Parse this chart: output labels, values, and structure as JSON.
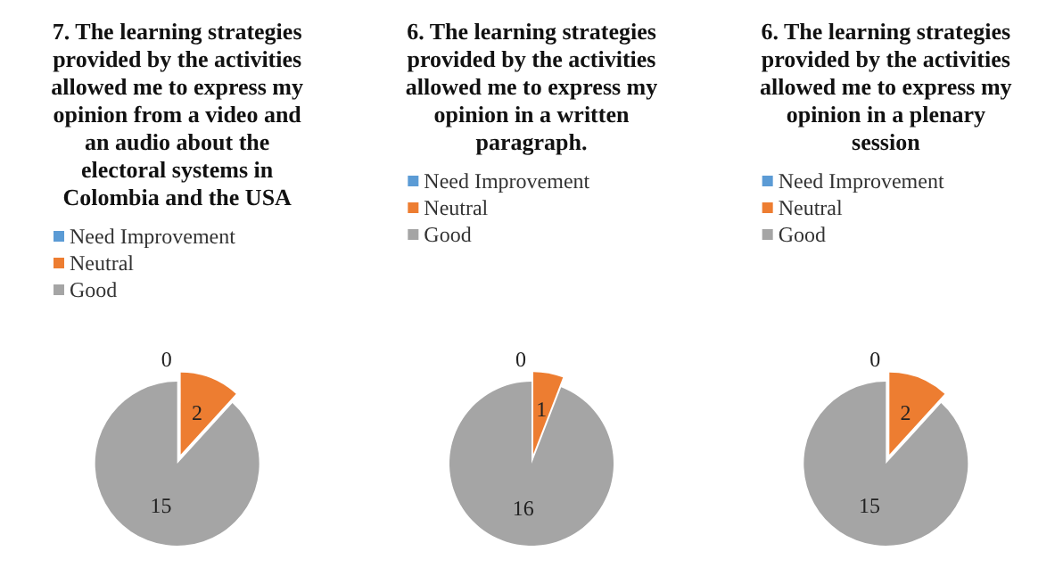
{
  "chart_data": [
    {
      "type": "pie",
      "title": "7. The learning strategies provided by the activities allowed me to express my opinion from a video and an audio about the electoral systems in Colombia and the USA",
      "categories": [
        "Need Improvement",
        "Neutral",
        "Good"
      ],
      "values": [
        0,
        2,
        15
      ],
      "value_labels": [
        "0",
        "2",
        "15"
      ],
      "colors": [
        "#5b9bd5",
        "#ed7d31",
        "#a5a5a5"
      ],
      "legend": "top"
    },
    {
      "type": "pie",
      "title": "6. The learning strategies provided by the activities allowed me to express my opinion in a written paragraph.",
      "categories": [
        "Need Improvement",
        "Neutral",
        "Good"
      ],
      "values": [
        0,
        1,
        16
      ],
      "value_labels": [
        "0",
        "1",
        "16"
      ],
      "colors": [
        "#5b9bd5",
        "#ed7d31",
        "#a5a5a5"
      ],
      "legend": "top"
    },
    {
      "type": "pie",
      "title": "6. The learning strategies provided by the activities allowed me to express my opinion in a plenary session",
      "categories": [
        "Need Improvement",
        "Neutral",
        "Good"
      ],
      "values": [
        0,
        2,
        15
      ],
      "value_labels": [
        "0",
        "2",
        "15"
      ],
      "colors": [
        "#5b9bd5",
        "#ed7d31",
        "#a5a5a5"
      ],
      "legend": "top"
    }
  ]
}
